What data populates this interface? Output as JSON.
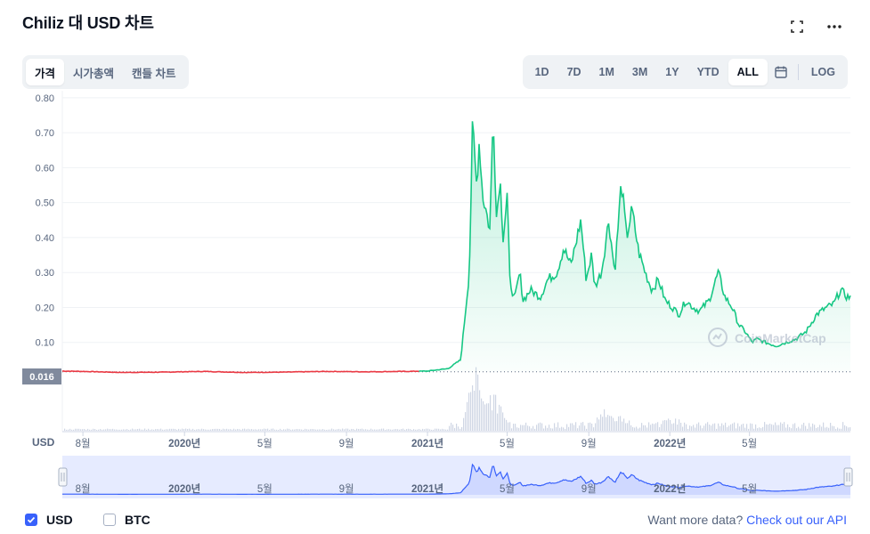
{
  "header": {
    "title": "Chiliz 대 USD 차트"
  },
  "tabs_left": [
    {
      "label": "가격",
      "active": true
    },
    {
      "label": "시가총액",
      "active": false
    },
    {
      "label": "캔들 차트",
      "active": false
    }
  ],
  "tabs_right": [
    {
      "label": "1D",
      "active": false
    },
    {
      "label": "7D",
      "active": false
    },
    {
      "label": "1M",
      "active": false
    },
    {
      "label": "3M",
      "active": false
    },
    {
      "label": "1Y",
      "active": false
    },
    {
      "label": "YTD",
      "active": false
    },
    {
      "label": "ALL",
      "active": true
    }
  ],
  "log_label": "LOG",
  "watermark": "CoinMarketCap",
  "footer": {
    "usd_label": "USD",
    "btc_label": "BTC",
    "api_prefix": "Want more data?",
    "api_link": "Check out our API"
  },
  "colors": {
    "up": "#16c784",
    "down": "#ea3943",
    "navigator": "#3861fb",
    "accent": "#3861fb"
  },
  "chart_data": {
    "type": "line",
    "y_ticks": [
      "0.80",
      "0.70",
      "0.60",
      "0.50",
      "0.40",
      "0.30",
      "0.20",
      "0.10"
    ],
    "ylim": [
      0,
      0.82
    ],
    "current_price_label": "0.016",
    "x_axis_unit": "USD",
    "x_ticks": [
      "8월",
      "2020년",
      "5월",
      "9월",
      "2021년",
      "5월",
      "9월",
      "2022년",
      "5월"
    ],
    "baseline_price": 0.016,
    "x": [
      "2019-07",
      "2019-08",
      "2019-10",
      "2019-12",
      "2020-02",
      "2020-04",
      "2020-06",
      "2020-08",
      "2020-10",
      "2020-12",
      "2021-01",
      "2021-02",
      "2021-02-20",
      "2021-03-05",
      "2021-03-10",
      "2021-03-13",
      "2021-03-16",
      "2021-03-20",
      "2021-03-25",
      "2021-03-30",
      "2021-04-05",
      "2021-04-10",
      "2021-04-15",
      "2021-04-20",
      "2021-04-25",
      "2021-05-01",
      "2021-05-05",
      "2021-05-12",
      "2021-05-20",
      "2021-05-25",
      "2021-06-05",
      "2021-06-20",
      "2021-07-01",
      "2021-07-15",
      "2021-07-25",
      "2021-08-05",
      "2021-08-20",
      "2021-08-28",
      "2021-09-05",
      "2021-09-10",
      "2021-09-20",
      "2021-10-01",
      "2021-10-10",
      "2021-10-20",
      "2021-10-28",
      "2021-11-05",
      "2021-11-15",
      "2021-11-25",
      "2021-12-05",
      "2021-12-15",
      "2021-12-25",
      "2022-01-05",
      "2022-01-15",
      "2022-01-25",
      "2022-02-05",
      "2022-02-15",
      "2022-03-01",
      "2022-03-15",
      "2022-03-25",
      "2022-04-05",
      "2022-04-15",
      "2022-04-25",
      "2022-05-05",
      "2022-05-12",
      "2022-05-25",
      "2022-06-10",
      "2022-06-25",
      "2022-07-10",
      "2022-07-25",
      "2022-08-10",
      "2022-08-25",
      "2022-09-05",
      "2022-09-15",
      "2022-09-25"
    ],
    "y": [
      0.018,
      0.017,
      0.014,
      0.015,
      0.017,
      0.014,
      0.015,
      0.017,
      0.016,
      0.017,
      0.018,
      0.025,
      0.05,
      0.3,
      0.73,
      0.63,
      0.55,
      0.68,
      0.52,
      0.48,
      0.42,
      0.77,
      0.45,
      0.58,
      0.4,
      0.52,
      0.28,
      0.22,
      0.3,
      0.22,
      0.25,
      0.23,
      0.28,
      0.3,
      0.37,
      0.32,
      0.45,
      0.28,
      0.35,
      0.26,
      0.3,
      0.45,
      0.3,
      0.56,
      0.4,
      0.48,
      0.36,
      0.3,
      0.25,
      0.28,
      0.22,
      0.2,
      0.18,
      0.22,
      0.2,
      0.19,
      0.22,
      0.3,
      0.23,
      0.2,
      0.15,
      0.13,
      0.1,
      0.11,
      0.1,
      0.09,
      0.1,
      0.11,
      0.13,
      0.18,
      0.2,
      0.21,
      0.25,
      0.23
    ]
  }
}
